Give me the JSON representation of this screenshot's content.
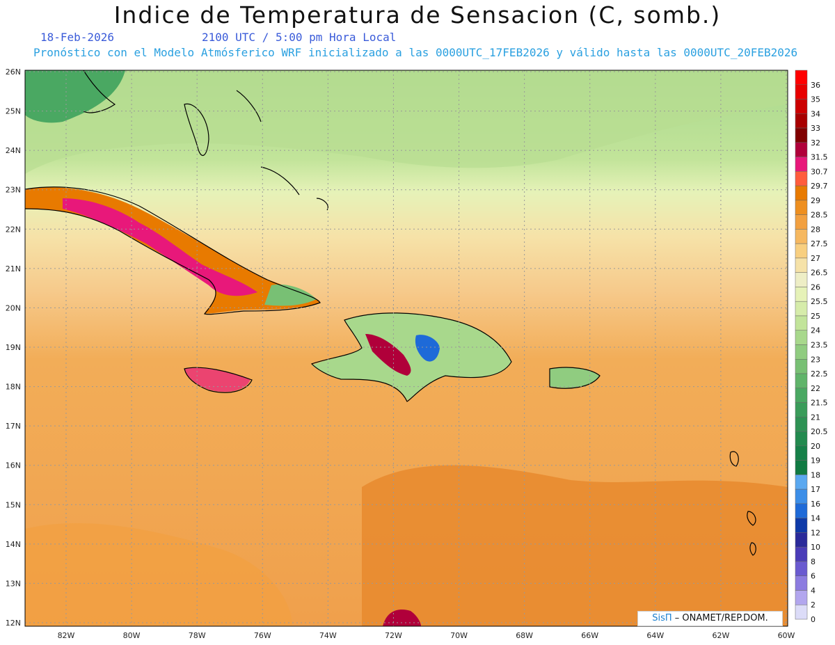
{
  "title": "Indice de Temperatura de Sensacion (C, somb.)",
  "date": "18-Feb-2026",
  "time": "2100 UTC / 5:00 pm Hora Local",
  "forecast_note": "Pronóstico con el Modelo Atmósferico WRF inicializado a las 0000UTC_17FEB2026 y válido hasta las  0000UTC_20FEB2026",
  "credit": {
    "logo": "SisΠ",
    "text": " – ONAMET/REP.DOM."
  },
  "axes": {
    "lat_labels": [
      "26N",
      "25N",
      "24N",
      "23N",
      "22N",
      "21N",
      "20N",
      "19N",
      "18N",
      "17N",
      "16N",
      "15N",
      "14N",
      "13N",
      "12N"
    ],
    "lon_labels": [
      "82W",
      "80W",
      "78W",
      "76W",
      "74W",
      "72W",
      "70W",
      "68W",
      "66W",
      "64W",
      "62W",
      "60W"
    ]
  },
  "legend": {
    "labels": [
      "36",
      "35",
      "34",
      "33",
      "32",
      "31.5",
      "30.7",
      "29.7",
      "29",
      "28.5",
      "28",
      "27.5",
      "27",
      "26.5",
      "26",
      "25.5",
      "25",
      "24",
      "23.5",
      "23",
      "22.5",
      "22",
      "21.5",
      "21",
      "20.5",
      "20",
      "19",
      "18",
      "17",
      "16",
      "14",
      "12",
      "10",
      "8",
      "6",
      "4",
      "2",
      "0"
    ],
    "colors": [
      "#ff0000",
      "#e80000",
      "#cc0000",
      "#a80000",
      "#800000",
      "#b0003a",
      "#e8187a",
      "#ff5c3c",
      "#e87a00",
      "#ee8f20",
      "#f2a040",
      "#f6b860",
      "#f8cf80",
      "#f6e2a8",
      "#eeeec6",
      "#e6f2b8",
      "#d6ecaa",
      "#c2e49a",
      "#a8d88c",
      "#90cc80",
      "#78c074",
      "#60b46a",
      "#4aa862",
      "#3a9c5a",
      "#2e9254",
      "#228a4e",
      "#168048",
      "#107a42",
      "#5aa8f0",
      "#3c8ee8",
      "#1e6ad8",
      "#0e3aa8",
      "#2a2a9a",
      "#4a3cb8",
      "#6a5ad0",
      "#8c7ce0",
      "#b2a6ee",
      "#dcdcf8"
    ]
  },
  "map_colors": {
    "ocean_warm": "#f0ac55",
    "ocean_hot": "#e88a2e",
    "land_green": "#3a9c5a",
    "upper_green": "#c2e49a",
    "dr_peak": "#1e6ad8"
  }
}
